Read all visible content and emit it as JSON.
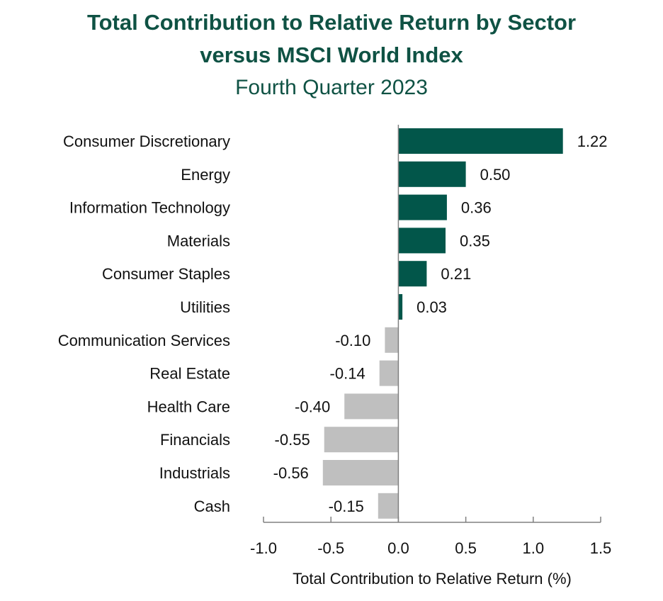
{
  "chart_data": {
    "type": "bar",
    "orientation": "horizontal",
    "title_line1": "Total Contribution to Relative Return by  Sector",
    "title_line2": "versus MSCI World Index",
    "subtitle": "Fourth Quarter 2023",
    "xlabel": "Total Contribution to Relative Return (%)",
    "ylabel": "",
    "xlim": [
      -1.0,
      1.5
    ],
    "xticks": [
      "-1.0",
      "-0.5",
      "0.0",
      "0.5",
      "1.0",
      "1.5"
    ],
    "xtick_values": [
      -1.0,
      -0.5,
      0.0,
      0.5,
      1.0,
      1.5
    ],
    "categories": [
      "Consumer Discretionary",
      "Energy",
      "Information Technology",
      "Materials",
      "Consumer Staples",
      "Utilities",
      "Communication Services",
      "Real Estate",
      "Health Care",
      "Financials",
      "Industrials",
      "Cash"
    ],
    "values": [
      1.22,
      0.5,
      0.36,
      0.35,
      0.21,
      0.03,
      -0.1,
      -0.14,
      -0.4,
      -0.55,
      -0.56,
      -0.15
    ],
    "value_labels": [
      "1.22",
      "0.50",
      "0.36",
      "0.35",
      "0.21",
      "0.03",
      "-0.10",
      "-0.14",
      "-0.40",
      "-0.55",
      "-0.56",
      "-0.15"
    ],
    "grid": false,
    "legend": "none",
    "colors": {
      "positive": "#02564a",
      "negative": "#bfbfbf",
      "title": "#0f5244",
      "axis": "#808080"
    }
  }
}
